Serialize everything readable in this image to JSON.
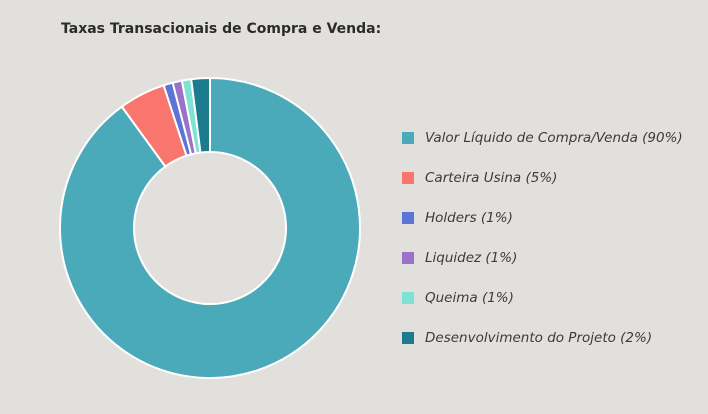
{
  "chart_data": {
    "type": "pie",
    "title": "Taxas Transacionais de Compra e Venda:",
    "donut": true,
    "start_angle_deg": 0,
    "legend_position": "right",
    "slices": [
      {
        "label": "Valor Líquido de Compra/Venda (90%)",
        "value": 90,
        "color": "#4aaab9"
      },
      {
        "label": "Carteira Usina (5%)",
        "value": 5,
        "color": "#f8766d"
      },
      {
        "label": "Holders (1%)",
        "value": 1,
        "color": "#5b74d6"
      },
      {
        "label": "Liquidez (1%)",
        "value": 1,
        "color": "#9a72c8"
      },
      {
        "label": "Queima (1%)",
        "value": 1,
        "color": "#7fe3d4"
      },
      {
        "label": "Desenvolvimento do Projeto (2%)",
        "value": 2,
        "color": "#1c7b8e"
      }
    ]
  }
}
